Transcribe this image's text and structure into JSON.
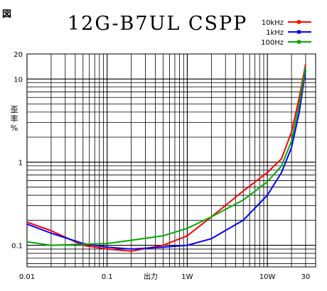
{
  "figure_label": "図",
  "chart_data": {
    "type": "line",
    "title": "12G-B7UL CSPP",
    "ylabel": "歪率 %",
    "xlabel": "出力",
    "xscale": "log",
    "yscale": "log",
    "xlim": [
      0.01,
      40
    ],
    "ylim": [
      0.055,
      20
    ],
    "x_ticks": [
      {
        "value": 0.01,
        "label": "0.01"
      },
      {
        "value": 0.1,
        "label": "0.1"
      },
      {
        "value": 0.35,
        "label": "出力"
      },
      {
        "value": 1,
        "label": "1W"
      },
      {
        "value": 10,
        "label": "10W"
      },
      {
        "value": 30,
        "label": "30"
      }
    ],
    "y_ticks": [
      {
        "value": 20,
        "label": "20"
      },
      {
        "value": 10,
        "label": "10"
      },
      {
        "value": 1,
        "label": "1"
      },
      {
        "value": 0.1,
        "label": "0.1"
      }
    ],
    "grid": true,
    "legend_position": "top-right",
    "series": [
      {
        "name": "10kHz",
        "color": "#ff0000",
        "x": [
          0.01,
          0.02,
          0.05,
          0.1,
          0.2,
          0.5,
          1,
          2,
          5,
          10,
          15,
          20,
          25,
          30
        ],
        "y": [
          0.19,
          0.15,
          0.1,
          0.09,
          0.085,
          0.1,
          0.13,
          0.22,
          0.45,
          0.75,
          1.1,
          2.3,
          6,
          15
        ]
      },
      {
        "name": "1kHz",
        "color": "#0000ff",
        "x": [
          0.01,
          0.02,
          0.05,
          0.1,
          0.2,
          0.5,
          1,
          2,
          5,
          10,
          15,
          20,
          25,
          30
        ],
        "y": [
          0.18,
          0.14,
          0.105,
          0.095,
          0.09,
          0.095,
          0.1,
          0.12,
          0.2,
          0.4,
          0.75,
          1.5,
          4,
          13
        ]
      },
      {
        "name": "100Hz",
        "color": "#00aa00",
        "x": [
          0.01,
          0.02,
          0.05,
          0.1,
          0.2,
          0.5,
          1,
          2,
          5,
          10,
          15,
          20,
          25,
          30
        ],
        "y": [
          0.11,
          0.1,
          0.103,
          0.105,
          0.115,
          0.13,
          0.16,
          0.22,
          0.35,
          0.58,
          0.9,
          1.8,
          5,
          14
        ]
      }
    ]
  }
}
